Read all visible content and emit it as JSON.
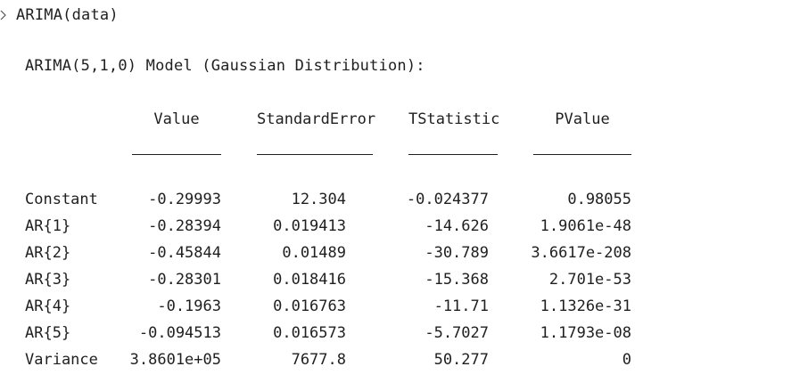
{
  "prompt": {
    "command": "ARIMA(data)",
    "prompt_icon": "chevron-right-icon"
  },
  "output": {
    "title": "ARIMA(5,1,0) Model (Gaussian Distribution):",
    "table": {
      "columns": [
        "Value",
        "StandardError",
        "TStatistic",
        "PValue"
      ],
      "rows": [
        {
          "label": "Constant",
          "values": [
            "-0.29993",
            "12.304",
            "-0.024377",
            "0.98055"
          ]
        },
        {
          "label": "AR{1}",
          "values": [
            "-0.28394",
            "0.019413",
            "-14.626",
            "1.9061e-48"
          ]
        },
        {
          "label": "AR{2}",
          "values": [
            "-0.45844",
            "0.01489",
            "-30.789",
            "3.6617e-208"
          ]
        },
        {
          "label": "AR{3}",
          "values": [
            "-0.28301",
            "0.018416",
            "-15.368",
            "2.701e-53"
          ]
        },
        {
          "label": "AR{4}",
          "values": [
            "-0.1963",
            "0.016763",
            "-11.71",
            "1.1326e-31"
          ]
        },
        {
          "label": "AR{5}",
          "values": [
            "-0.094513",
            "0.016573",
            "-5.7027",
            "1.1793e-08"
          ]
        },
        {
          "label": "Variance",
          "values": [
            "3.8601e+05",
            "7677.8",
            "50.277",
            "0"
          ]
        }
      ]
    }
  }
}
